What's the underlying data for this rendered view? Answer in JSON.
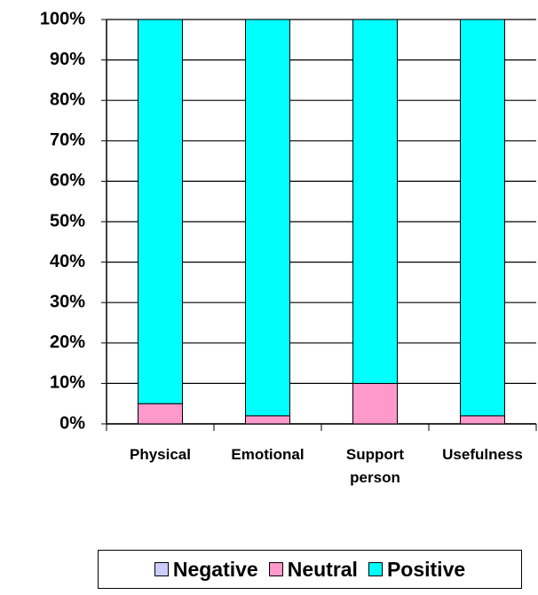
{
  "chart_data": {
    "type": "stacked_bar",
    "categories": [
      "Physical",
      "Emotional",
      "Support person",
      "Usefulness"
    ],
    "series": [
      {
        "name": "Negative",
        "color": "#ccccff",
        "values": [
          0,
          0,
          0,
          0
        ]
      },
      {
        "name": "Neutral",
        "color": "#ff99cc",
        "values": [
          5,
          2,
          10,
          2
        ]
      },
      {
        "name": "Positive",
        "color": "#00ffff",
        "values": [
          95,
          98,
          90,
          98
        ]
      }
    ],
    "ylim": [
      0,
      100
    ],
    "yticks": [
      {
        "value": 0,
        "label": "0%"
      },
      {
        "value": 10,
        "label": "10%"
      },
      {
        "value": 20,
        "label": "20%"
      },
      {
        "value": 30,
        "label": "30%"
      },
      {
        "value": 40,
        "label": "40%"
      },
      {
        "value": 50,
        "label": "50%"
      },
      {
        "value": 60,
        "label": "60%"
      },
      {
        "value": 70,
        "label": "70%"
      },
      {
        "value": 80,
        "label": "80%"
      },
      {
        "value": 90,
        "label": "90%"
      },
      {
        "value": 100,
        "label": "100%"
      }
    ],
    "grid": true,
    "legend": "bottom"
  }
}
